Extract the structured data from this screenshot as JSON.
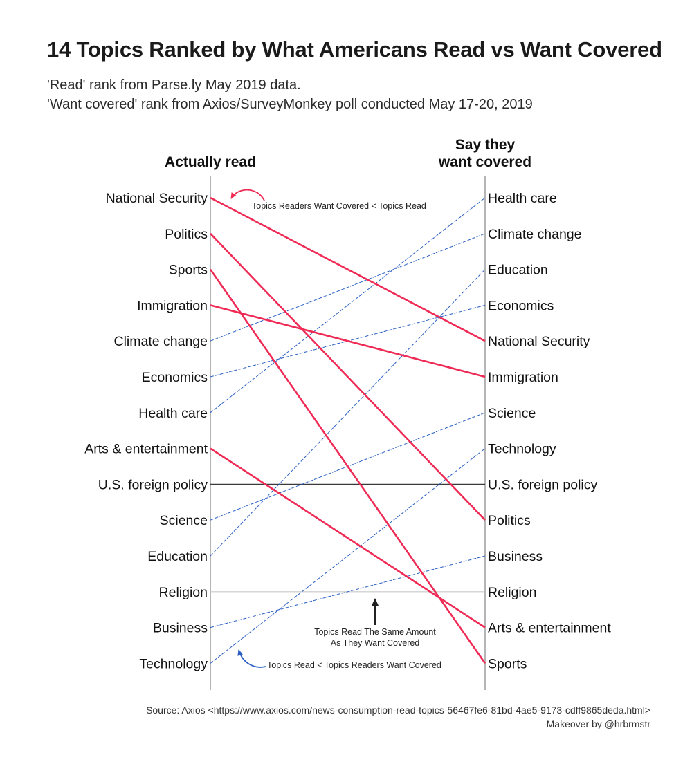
{
  "title": "14 Topics Ranked by What Americans Read vs Want Covered",
  "subtitle": {
    "line1": "'Read' rank from Parse.ly May 2019 data.",
    "line2": "'Want covered' rank from Axios/SurveyMonkey poll conducted May 17-20, 2019"
  },
  "caption": {
    "source": "Source: Axios <https://www.axios.com/news-consumption-read-topics-56467fe6-81bd-4ae5-9173-cdff9865deda.html>",
    "credit": "Makeover by @hrbrmstr"
  },
  "colors": {
    "wantLess": "#ee2a55",
    "wantMore": "#2a5fc4",
    "same": "#3a3a3a",
    "sameLight": "#c8c8c8",
    "axis": "#b5b5b5"
  },
  "chart_data": {
    "type": "slope",
    "left_header": "Actually read",
    "right_header": [
      "Say they",
      "want covered"
    ],
    "topics": [
      {
        "topic": "National Security",
        "read_rank": 1,
        "want_rank": 5
      },
      {
        "topic": "Politics",
        "read_rank": 2,
        "want_rank": 10
      },
      {
        "topic": "Sports",
        "read_rank": 3,
        "want_rank": 14
      },
      {
        "topic": "Immigration",
        "read_rank": 4,
        "want_rank": 6
      },
      {
        "topic": "Climate change",
        "read_rank": 5,
        "want_rank": 2
      },
      {
        "topic": "Economics",
        "read_rank": 6,
        "want_rank": 4
      },
      {
        "topic": "Health care",
        "read_rank": 7,
        "want_rank": 1
      },
      {
        "topic": "Arts & entertainment",
        "read_rank": 8,
        "want_rank": 13
      },
      {
        "topic": "U.S. foreign policy",
        "read_rank": 9,
        "want_rank": 9
      },
      {
        "topic": "Science",
        "read_rank": 10,
        "want_rank": 7
      },
      {
        "topic": "Education",
        "read_rank": 11,
        "want_rank": 3
      },
      {
        "topic": "Religion",
        "read_rank": 12,
        "want_rank": 12
      },
      {
        "topic": "Business",
        "read_rank": 13,
        "want_rank": 11
      },
      {
        "topic": "Technology",
        "read_rank": 14,
        "want_rank": 8
      }
    ],
    "annotations": {
      "top": "Topics Readers Want Covered < Topics Read",
      "middle": [
        "Topics Read The Same Amount",
        "As They Want Covered"
      ],
      "bottom": "Topics Read < Topics Readers Want Covered"
    }
  }
}
